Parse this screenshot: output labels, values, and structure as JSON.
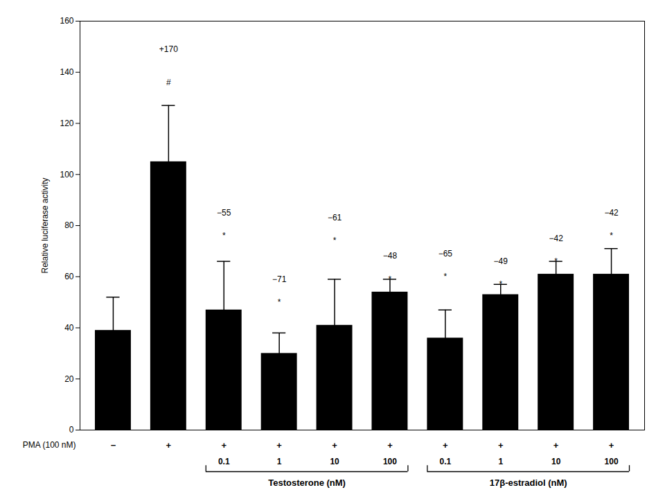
{
  "chart_data": {
    "type": "bar",
    "ylabel": "Relative luciferase activity",
    "values": [
      39,
      105,
      47,
      30,
      41,
      54,
      36,
      53,
      61,
      61
    ],
    "errors": [
      13,
      22,
      19,
      8,
      18,
      5,
      11,
      4,
      5,
      10
    ],
    "color": "#000000",
    "ylim": [
      0,
      160
    ],
    "yticks": [
      0,
      20,
      40,
      60,
      80,
      100,
      120,
      140,
      160
    ],
    "tick_labels": "y",
    "grid": false,
    "annotations": [
      {
        "text": "+170",
        "bar": 1,
        "y": 148
      },
      {
        "text": "#",
        "bar": 1,
        "y": 135
      },
      {
        "text": "−55",
        "bar": 2,
        "y": 84
      },
      {
        "text": "*",
        "bar": 2,
        "y": 75
      },
      {
        "text": "−71",
        "bar": 3,
        "y": 58
      },
      {
        "text": "*",
        "bar": 3,
        "y": 49
      },
      {
        "text": "−61",
        "bar": 4,
        "y": 82
      },
      {
        "text": "*",
        "bar": 4,
        "y": 73
      },
      {
        "text": "−48",
        "bar": 5,
        "y": 67
      },
      {
        "text": "*",
        "bar": 5,
        "y": 58
      },
      {
        "text": "−65",
        "bar": 6,
        "y": 68
      },
      {
        "text": "*",
        "bar": 6,
        "y": 59
      },
      {
        "text": "−49",
        "bar": 7,
        "y": 65
      },
      {
        "text": "*",
        "bar": 7,
        "y": 56
      },
      {
        "text": "−42",
        "bar": 8,
        "y": 74
      },
      {
        "text": "*",
        "bar": 8,
        "y": 65
      },
      {
        "text": "−42",
        "bar": 9,
        "y": 84
      },
      {
        "text": "*",
        "bar": 9,
        "y": 75
      }
    ],
    "pma": {
      "label": "PMA (100 nM)",
      "signs": [
        "−",
        "+",
        "+",
        "+",
        "+",
        "+",
        "+",
        "+",
        "+",
        "+"
      ]
    },
    "concentrations": [
      null,
      null,
      "0.1",
      "1",
      "10",
      "100",
      "0.1",
      "1",
      "10",
      "100"
    ],
    "groups": [
      {
        "label": "Testosterone (nM)",
        "from": 2,
        "to": 5
      },
      {
        "label": "17β-estradiol (nM)",
        "from": 6,
        "to": 9
      }
    ]
  }
}
